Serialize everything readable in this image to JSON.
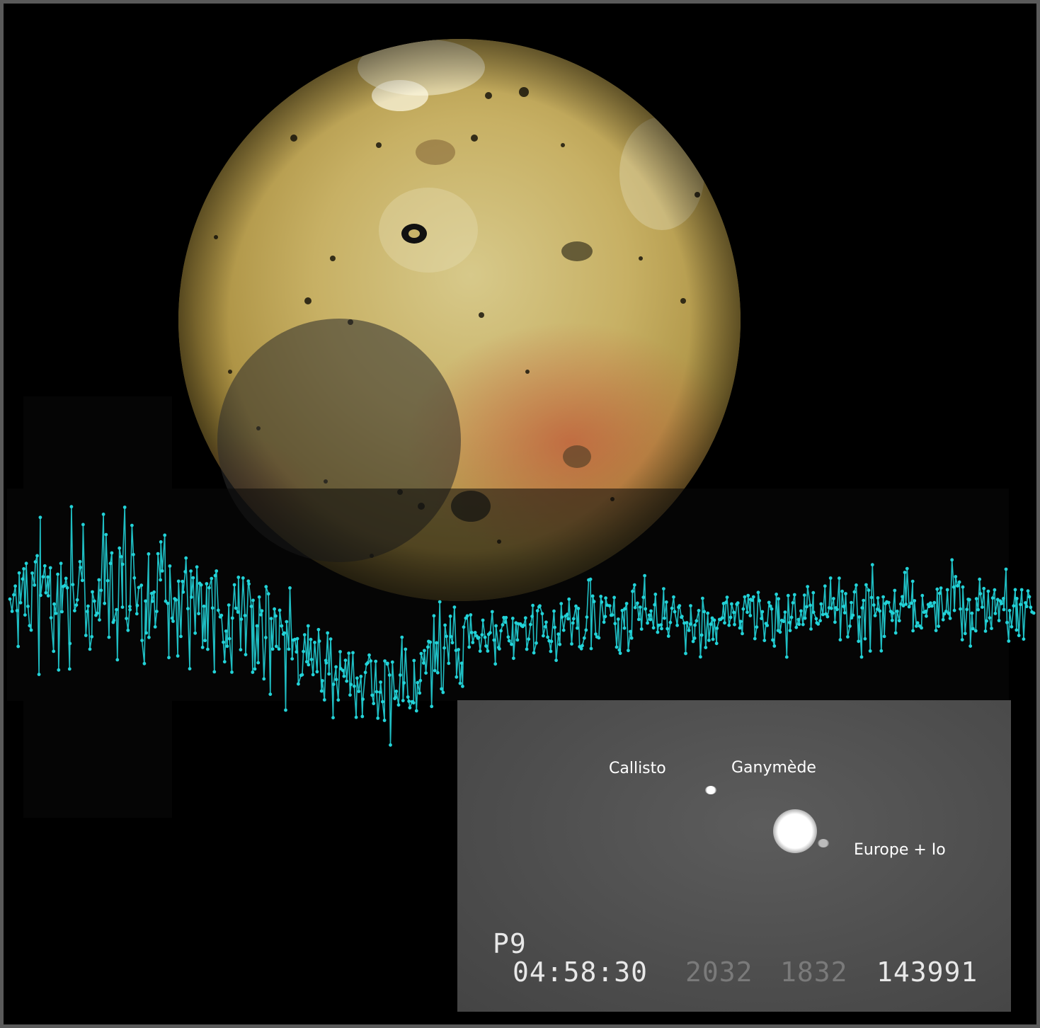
{
  "inset": {
    "labels": {
      "callisto": "Callisto",
      "ganymede": "Ganymède",
      "europe_io": "Europe + Io"
    },
    "overlay": {
      "channel": "P9",
      "time": "04:58:30",
      "field1": "2032",
      "field2": "1832",
      "field3": "143991"
    }
  },
  "colors": {
    "curve": "#22d3d8",
    "frame": "#5a5a5a",
    "background": "#000000",
    "inset_background": "#4f4f4f",
    "io_base": "#c9b46a"
  }
}
